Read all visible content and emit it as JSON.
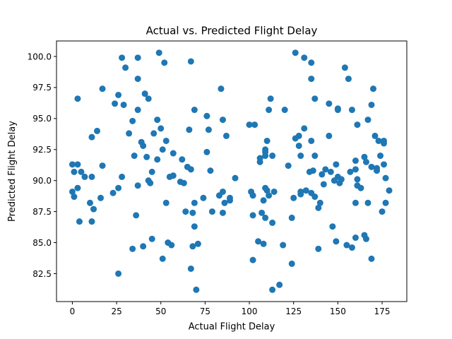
{
  "chart_data": {
    "type": "scatter",
    "title": "Actual vs. Predicted Flight Delay",
    "xlabel": "Actual Flight Delay",
    "ylabel": "Predicted Flight Delay",
    "xlim": [
      -8.95,
      188.95
    ],
    "ylim": [
      80.25,
      101.25
    ],
    "xticks": [
      "0",
      "25",
      "50",
      "75",
      "100",
      "125",
      "150",
      "175"
    ],
    "yticks": [
      "82.5",
      "85.0",
      "87.5",
      "90.0",
      "92.5",
      "95.0",
      "97.5",
      "100.0"
    ],
    "grid": false,
    "marker_color": "#1f77b4",
    "points": [
      [
        0,
        91.3
      ],
      [
        0,
        89.1
      ],
      [
        1,
        90.7
      ],
      [
        1,
        88.7
      ],
      [
        3,
        96.6
      ],
      [
        3,
        91.3
      ],
      [
        3,
        89.4
      ],
      [
        4,
        86.7
      ],
      [
        5,
        90.7
      ],
      [
        7,
        90.3
      ],
      [
        10,
        88.2
      ],
      [
        11,
        86.7
      ],
      [
        11,
        93.5
      ],
      [
        11,
        90.3
      ],
      [
        12,
        87.7
      ],
      [
        14,
        94.0
      ],
      [
        16,
        88.6
      ],
      [
        17,
        97.4
      ],
      [
        17,
        91.2
      ],
      [
        23,
        89.0
      ],
      [
        24,
        96.2
      ],
      [
        26,
        96.9
      ],
      [
        26,
        89.4
      ],
      [
        26,
        82.5
      ],
      [
        28,
        90.3
      ],
      [
        28,
        99.9
      ],
      [
        29,
        96.1
      ],
      [
        30,
        99.1
      ],
      [
        32,
        93.8
      ],
      [
        34,
        94.8
      ],
      [
        34,
        84.5
      ],
      [
        35,
        92.0
      ],
      [
        36,
        87.2
      ],
      [
        37,
        99.9
      ],
      [
        37,
        98.2
      ],
      [
        37,
        95.7
      ],
      [
        37,
        89.6
      ],
      [
        39,
        93.1
      ],
      [
        40,
        92.8
      ],
      [
        40,
        84.7
      ],
      [
        41,
        97.0
      ],
      [
        42,
        91.9
      ],
      [
        43,
        96.6
      ],
      [
        43,
        90.0
      ],
      [
        44,
        89.8
      ],
      [
        45,
        85.3
      ],
      [
        45,
        90.7
      ],
      [
        46,
        93.8
      ],
      [
        48,
        94.9
      ],
      [
        48,
        91.7
      ],
      [
        49,
        100.3
      ],
      [
        50,
        94.2
      ],
      [
        51,
        92.5
      ],
      [
        51,
        83.7
      ],
      [
        52,
        99.5
      ],
      [
        53,
        93.2
      ],
      [
        53,
        88.2
      ],
      [
        54,
        85.0
      ],
      [
        55,
        90.3
      ],
      [
        56,
        84.8
      ],
      [
        57,
        92.2
      ],
      [
        57,
        90.4
      ],
      [
        61,
        89.9
      ],
      [
        62,
        91.7
      ],
      [
        63,
        89.8
      ],
      [
        64,
        87.5
      ],
      [
        65,
        91.1
      ],
      [
        66,
        94.1
      ],
      [
        67,
        99.6
      ],
      [
        67,
        90.9
      ],
      [
        67,
        82.9
      ],
      [
        68,
        87.4
      ],
      [
        68,
        84.7
      ],
      [
        69,
        95.7
      ],
      [
        69,
        88.2
      ],
      [
        69,
        86.3
      ],
      [
        70,
        81.2
      ],
      [
        71,
        84.9
      ],
      [
        74,
        88.6
      ],
      [
        76,
        92.3
      ],
      [
        76,
        95.2
      ],
      [
        77,
        94.1
      ],
      [
        78,
        90.8
      ],
      [
        79,
        87.5
      ],
      [
        83,
        88.8
      ],
      [
        84,
        97.4
      ],
      [
        85,
        94.9
      ],
      [
        85,
        89.1
      ],
      [
        85,
        87.4
      ],
      [
        86,
        88.2
      ],
      [
        87,
        93.6
      ],
      [
        89,
        88.6
      ],
      [
        89,
        88.4
      ],
      [
        92,
        90.2
      ],
      [
        100,
        94.5
      ],
      [
        101,
        89.1
      ],
      [
        102,
        88.8
      ],
      [
        102,
        87.2
      ],
      [
        102,
        83.6
      ],
      [
        103,
        94.5
      ],
      [
        105,
        85.1
      ],
      [
        106,
        91.8
      ],
      [
        106,
        91.5
      ],
      [
        107,
        87.4
      ],
      [
        108,
        84.9
      ],
      [
        108,
        88.4
      ],
      [
        109,
        89.4
      ],
      [
        109,
        92.5
      ],
      [
        109,
        92.3
      ],
      [
        109,
        92.0
      ],
      [
        109,
        87.0
      ],
      [
        110,
        89.2
      ],
      [
        110,
        93.2
      ],
      [
        111,
        95.7
      ],
      [
        111,
        88.8
      ],
      [
        112,
        96.6
      ],
      [
        113,
        92.0
      ],
      [
        113,
        86.6
      ],
      [
        113,
        81.2
      ],
      [
        114,
        89.1
      ],
      [
        117,
        81.6
      ],
      [
        119,
        84.8
      ],
      [
        120,
        95.7
      ],
      [
        122,
        91.2
      ],
      [
        124,
        87.0
      ],
      [
        124,
        83.3
      ],
      [
        125,
        88.6
      ],
      [
        126,
        100.3
      ],
      [
        126,
        93.4
      ],
      [
        128,
        93.6
      ],
      [
        128,
        92.8
      ],
      [
        129,
        92.0
      ],
      [
        129,
        89.1
      ],
      [
        129,
        88.9
      ],
      [
        131,
        99.9
      ],
      [
        131,
        94.2
      ],
      [
        132,
        89.2
      ],
      [
        134,
        90.7
      ],
      [
        135,
        99.5
      ],
      [
        135,
        98.2
      ],
      [
        135,
        93.2
      ],
      [
        135,
        89.0
      ],
      [
        136,
        90.8
      ],
      [
        137,
        96.6
      ],
      [
        137,
        92.0
      ],
      [
        137,
        88.7
      ],
      [
        139,
        84.5
      ],
      [
        139,
        87.8
      ],
      [
        140,
        88.2
      ],
      [
        141,
        90.5
      ],
      [
        142,
        89.7
      ],
      [
        143,
        90.9
      ],
      [
        145,
        96.2
      ],
      [
        145,
        93.6
      ],
      [
        146,
        90.7
      ],
      [
        147,
        86.3
      ],
      [
        148,
        90.0
      ],
      [
        149,
        91.3
      ],
      [
        149,
        85.1
      ],
      [
        150,
        95.7
      ],
      [
        150,
        95.8
      ],
      [
        150,
        90.3
      ],
      [
        151,
        89.8
      ],
      [
        152,
        90.1
      ],
      [
        154,
        99.1
      ],
      [
        155,
        84.8
      ],
      [
        156,
        98.2
      ],
      [
        157,
        90.7
      ],
      [
        158,
        95.7
      ],
      [
        158,
        84.6
      ],
      [
        160,
        91.6
      ],
      [
        160,
        90.9
      ],
      [
        160,
        88.2
      ],
      [
        160,
        85.4
      ],
      [
        161,
        94.5
      ],
      [
        161,
        90.1
      ],
      [
        161,
        89.6
      ],
      [
        163,
        89.4
      ],
      [
        165,
        91.9
      ],
      [
        165,
        85.6
      ],
      [
        166,
        91.5
      ],
      [
        166,
        85.3
      ],
      [
        167,
        94.9
      ],
      [
        167,
        88.2
      ],
      [
        169,
        96.1
      ],
      [
        169,
        91.1
      ],
      [
        169,
        83.7
      ],
      [
        170,
        97.4
      ],
      [
        171,
        93.6
      ],
      [
        172,
        91.0
      ],
      [
        172,
        90.8
      ],
      [
        173,
        93.2
      ],
      [
        174,
        92.0
      ],
      [
        175,
        87.5
      ],
      [
        176,
        93.2
      ],
      [
        176,
        91.3
      ],
      [
        176,
        93.0
      ],
      [
        177,
        90.2
      ],
      [
        177,
        88.2
      ],
      [
        179,
        89.2
      ]
    ]
  }
}
